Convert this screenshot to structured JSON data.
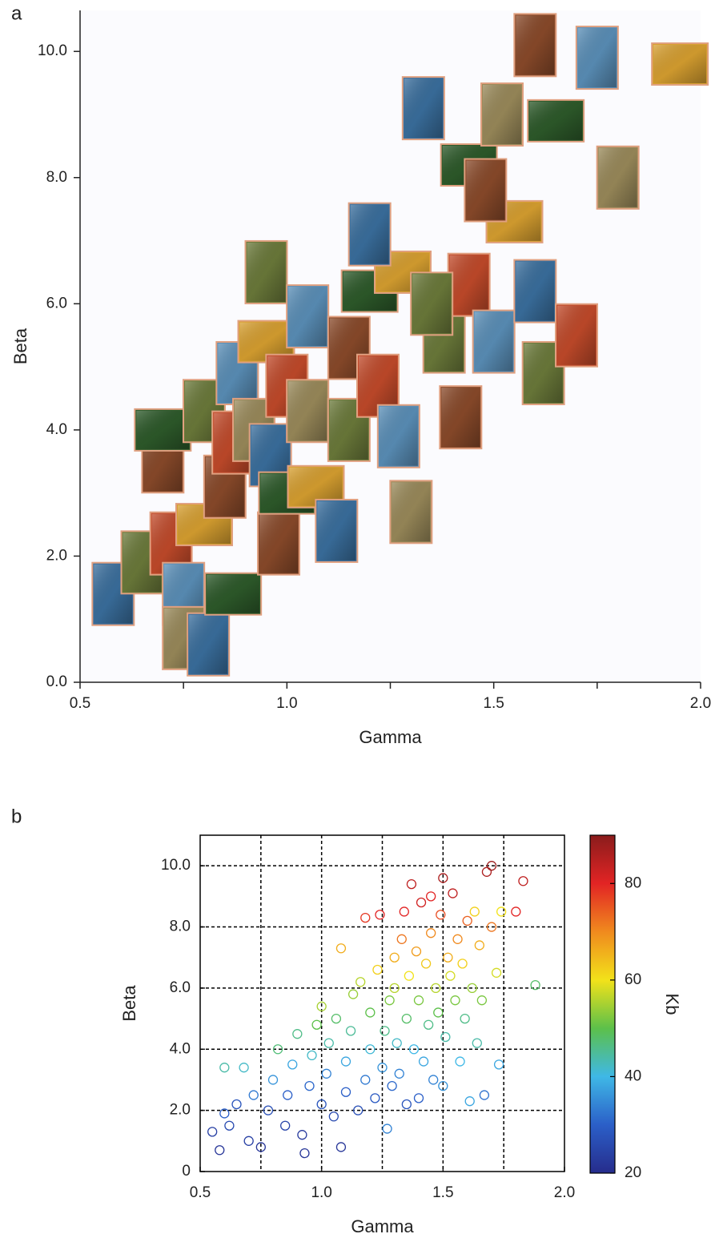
{
  "chart_data": [
    {
      "type": "image_scatter",
      "panel_label": "a",
      "xlabel": "Gamma",
      "ylabel": "Beta",
      "xlim": [
        0.5,
        2.0
      ],
      "ylim": [
        0,
        10.65
      ],
      "xticks": [
        0.5,
        {
          "value": 1,
          "label": "1.0"
        },
        1.5,
        {
          "value": 2,
          "label": "2.0"
        }
      ],
      "xminorticks": [
        0.75,
        1.25,
        1.75
      ],
      "yticks": [
        {
          "value": 0,
          "label": "0.0"
        },
        {
          "value": 2,
          "label": "2.0"
        },
        {
          "value": 4,
          "label": "4.0"
        },
        {
          "value": 6,
          "label": "6.0"
        },
        {
          "value": 8,
          "label": "8.0"
        },
        {
          "value": 10,
          "label": "10.0"
        }
      ],
      "palette": [
        "#3a6f9e",
        "#6b7a3a",
        "#8a4a2a",
        "#2d5a2a",
        "#c24a2a",
        "#5a8fb8",
        "#9a8a5a",
        "#d8a030"
      ],
      "x": [
        0.58,
        0.65,
        0.7,
        0.7,
        0.72,
        0.75,
        0.75,
        0.8,
        0.81,
        0.8,
        0.85,
        0.87,
        0.87,
        0.88,
        0.92,
        0.95,
        0.96,
        0.95,
        0.98,
        1.0,
        1.0,
        1.05,
        1.05,
        1.07,
        1.12,
        1.15,
        1.15,
        1.2,
        1.22,
        1.27,
        1.3,
        1.28,
        1.33,
        1.38,
        1.42,
        1.44,
        1.44,
        1.5,
        1.52,
        1.55,
        1.6,
        1.62,
        1.6,
        1.65,
        1.7,
        1.75,
        1.8,
        1.95,
        1.2,
        1.35,
        1.48
      ],
      "y": [
        1.4,
        1.9,
        3.5,
        4.0,
        2.2,
        1.4,
        0.7,
        2.5,
        0.6,
        4.3,
        3.1,
        1.4,
        3.8,
        4.9,
        4.0,
        5.4,
        3.6,
        6.5,
        2.2,
        3.0,
        4.7,
        5.8,
        4.3,
        3.1,
        2.4,
        4.0,
        5.3,
        6.2,
        4.7,
        3.9,
        2.7,
        6.5,
        9.1,
        5.4,
        4.2,
        8.2,
        6.3,
        5.4,
        9.0,
        7.3,
        6.2,
        4.9,
        10.1,
        8.9,
        5.5,
        9.9,
        8.0,
        9.8,
        7.1,
        6.0,
        7.8
      ]
    },
    {
      "type": "colored_scatter",
      "panel_label": "b",
      "xlabel": "Gamma",
      "ylabel": "Beta",
      "xlim": [
        0.5,
        2.0
      ],
      "ylim": [
        0,
        11
      ],
      "xticks": [
        0.5,
        {
          "value": 1,
          "label": "1.0"
        },
        1.5,
        {
          "value": 2,
          "label": "2.0"
        }
      ],
      "xgrid": [
        0.75,
        1,
        1.25,
        1.5,
        1.75
      ],
      "yticks": [
        0,
        {
          "value": 2,
          "label": "2.0"
        },
        {
          "value": 4,
          "label": "4.0"
        },
        {
          "value": 6,
          "label": "6.0"
        },
        {
          "value": 8,
          "label": "8.0"
        },
        {
          "value": 10,
          "label": "10.0"
        }
      ],
      "grid": true,
      "colorbar": {
        "label": "Kb",
        "lim": [
          20,
          90
        ],
        "ticks": [
          20,
          40,
          60,
          80
        ],
        "colormap": [
          "#262c8c",
          "#2b5fc8",
          "#3fb8e6",
          "#5cc04a",
          "#f2e21a",
          "#f08a1e",
          "#e22424",
          "#8a1c1c"
        ]
      },
      "x": [
        0.55,
        0.58,
        0.6,
        0.62,
        0.65,
        0.6,
        0.68,
        0.7,
        0.72,
        0.75,
        0.78,
        0.8,
        0.82,
        0.85,
        0.86,
        0.88,
        0.9,
        0.92,
        0.93,
        0.95,
        0.96,
        0.98,
        1.0,
        1.0,
        1.02,
        1.03,
        1.05,
        1.06,
        1.08,
        1.08,
        1.1,
        1.1,
        1.12,
        1.13,
        1.15,
        1.16,
        1.18,
        1.18,
        1.2,
        1.2,
        1.22,
        1.23,
        1.24,
        1.25,
        1.26,
        1.27,
        1.28,
        1.29,
        1.3,
        1.3,
        1.31,
        1.32,
        1.33,
        1.34,
        1.35,
        1.35,
        1.36,
        1.37,
        1.38,
        1.39,
        1.4,
        1.4,
        1.41,
        1.42,
        1.43,
        1.44,
        1.45,
        1.45,
        1.46,
        1.47,
        1.48,
        1.49,
        1.5,
        1.5,
        1.51,
        1.52,
        1.53,
        1.54,
        1.55,
        1.56,
        1.57,
        1.58,
        1.59,
        1.6,
        1.61,
        1.62,
        1.63,
        1.64,
        1.65,
        1.66,
        1.67,
        1.68,
        1.7,
        1.7,
        1.72,
        1.73,
        1.74,
        1.8,
        1.83,
        1.88
      ],
      "y": [
        1.3,
        0.7,
        1.9,
        1.5,
        2.2,
        3.4,
        3.4,
        1.0,
        2.5,
        0.8,
        2.0,
        3.0,
        4.0,
        1.5,
        2.5,
        3.5,
        4.5,
        1.2,
        0.6,
        2.8,
        3.8,
        4.8,
        2.2,
        5.4,
        3.2,
        4.2,
        1.8,
        5.0,
        0.8,
        7.3,
        2.6,
        3.6,
        4.6,
        5.8,
        2.0,
        6.2,
        8.3,
        3.0,
        4.0,
        5.2,
        2.4,
        6.6,
        8.4,
        3.4,
        4.6,
        1.4,
        5.6,
        2.8,
        7.0,
        6.0,
        4.2,
        3.2,
        7.6,
        8.5,
        5.0,
        2.2,
        6.4,
        9.4,
        4.0,
        7.2,
        5.6,
        2.4,
        8.8,
        3.6,
        6.8,
        4.8,
        9.0,
        7.8,
        3.0,
        6.0,
        5.2,
        8.4,
        2.8,
        9.6,
        4.4,
        7.0,
        6.4,
        9.1,
        5.6,
        7.6,
        3.6,
        6.8,
        5.0,
        8.2,
        2.3,
        6.0,
        8.5,
        4.2,
        7.4,
        5.6,
        2.5,
        9.8,
        10.0,
        8.0,
        6.5,
        3.5,
        8.5,
        8.5,
        9.5,
        6.1
      ],
      "c": [
        24,
        22,
        30,
        26,
        28,
        44,
        42,
        24,
        33,
        22,
        27,
        36,
        47,
        25,
        30,
        38,
        46,
        23,
        22,
        31,
        42,
        50,
        28,
        55,
        34,
        44,
        26,
        48,
        22,
        66,
        30,
        38,
        45,
        54,
        27,
        56,
        78,
        33,
        41,
        50,
        29,
        62,
        80,
        36,
        46,
        34,
        52,
        31,
        66,
        56,
        42,
        34,
        72,
        80,
        48,
        28,
        60,
        84,
        40,
        68,
        52,
        30,
        82,
        38,
        63,
        46,
        80,
        70,
        34,
        56,
        50,
        76,
        36,
        86,
        44,
        66,
        58,
        84,
        52,
        70,
        40,
        62,
        46,
        74,
        38,
        54,
        62,
        44,
        66,
        52,
        32,
        86,
        88,
        72,
        58,
        38,
        60,
        80,
        84,
        48
      ]
    }
  ]
}
